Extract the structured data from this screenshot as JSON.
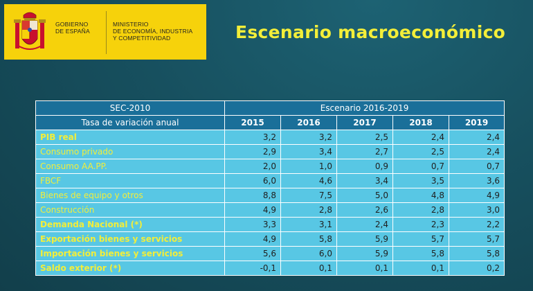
{
  "logo": {
    "gov_line1": "GOBIERNO",
    "gov_line2": "DE ESPAÑA",
    "ministry_line1": "MINISTERIO",
    "ministry_line2": "DE ECONOMÍA, INDUSTRIA",
    "ministry_line3": "Y COMPETITIVIDAD",
    "background_color": "#f6d20b"
  },
  "title": "Escenario macroeconómico",
  "title_color": "#f3ee39",
  "table": {
    "corner_header": "SEC-2010",
    "group_header": "Escenario 2016-2019",
    "label_header": "Tasa de variación anual",
    "years": [
      "2015",
      "2016",
      "2017",
      "2018",
      "2019"
    ],
    "header_color": "#1a6f99",
    "cell_color": "#58c7e4",
    "label_color": "#f3ee39",
    "rows": [
      {
        "label": "PIB real",
        "bold": true,
        "values": [
          "3,2",
          "3,2",
          "2,5",
          "2,4",
          "2,4"
        ]
      },
      {
        "label": "Consumo privado",
        "bold": false,
        "values": [
          "2,9",
          "3,4",
          "2,7",
          "2,5",
          "2,4"
        ]
      },
      {
        "label": "Consumo  AA.PP.",
        "bold": false,
        "values": [
          "2,0",
          "1,0",
          "0,9",
          "0,7",
          "0,7"
        ]
      },
      {
        "label": "FBCF",
        "bold": false,
        "values": [
          "6,0",
          "4,6",
          "3,4",
          "3,5",
          "3,6"
        ]
      },
      {
        "label": "Bienes de equipo y otros",
        "bold": false,
        "values": [
          "8,8",
          "7,5",
          "5,0",
          "4,8",
          "4,9"
        ]
      },
      {
        "label": "Construcción",
        "bold": false,
        "values": [
          "4,9",
          "2,8",
          "2,6",
          "2,8",
          "3,0"
        ]
      },
      {
        "label": "Demanda Nacional  (*)",
        "bold": true,
        "values": [
          "3,3",
          "3,1",
          "2,4",
          "2,3",
          "2,2"
        ]
      },
      {
        "label": "Exportación bienes y servicios",
        "bold": true,
        "values": [
          "4,9",
          "5,8",
          "5,9",
          "5,7",
          "5,7"
        ]
      },
      {
        "label": "Importación bienes y servicios",
        "bold": true,
        "values": [
          "5,6",
          "6,0",
          "5,9",
          "5,8",
          "5,8"
        ]
      },
      {
        "label": "Saldo exterior  (*)",
        "bold": true,
        "values": [
          "-0,1",
          "0,1",
          "0,1",
          "0,1",
          "0,2"
        ]
      }
    ]
  }
}
